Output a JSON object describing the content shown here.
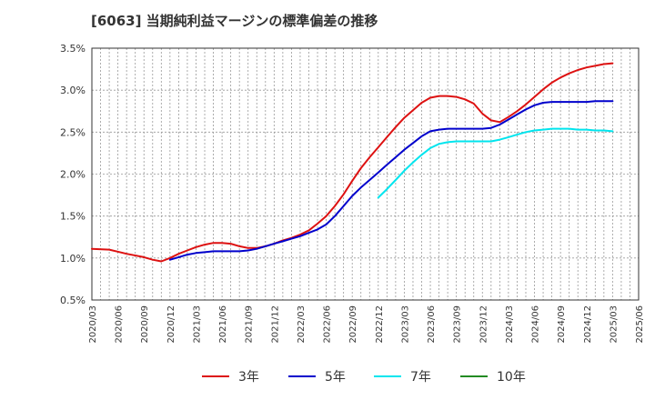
{
  "chart_data": {
    "type": "line",
    "title": "[6063]  当期純利益マージンの標準偏差の推移",
    "xlabel": "",
    "ylabel": "",
    "ylim": [
      0.5,
      3.5
    ],
    "yticks": [
      "0.5%",
      "1.0%",
      "1.5%",
      "2.0%",
      "2.5%",
      "3.0%",
      "3.5%"
    ],
    "yticks_values": [
      0.5,
      1.0,
      1.5,
      2.0,
      2.5,
      3.0,
      3.5
    ],
    "xticks": [
      "2020/03",
      "2020/06",
      "2020/09",
      "2020/12",
      "2021/03",
      "2021/06",
      "2021/09",
      "2021/12",
      "2022/03",
      "2022/06",
      "2022/09",
      "2022/12",
      "2023/03",
      "2023/06",
      "2023/09",
      "2023/12",
      "2024/03",
      "2024/06",
      "2024/09",
      "2024/12",
      "2025/03",
      "2025/06"
    ],
    "grid": true,
    "legend_position": "bottom",
    "series": [
      {
        "name": "3年",
        "color": "#dd1111",
        "x": [
          "2020/03",
          "2020/05",
          "2020/07",
          "2020/09",
          "2020/10",
          "2020/11",
          "2020/12",
          "2021/01",
          "2021/02",
          "2021/03",
          "2021/04",
          "2021/05",
          "2021/06",
          "2021/07",
          "2021/08",
          "2021/09",
          "2021/10",
          "2021/11",
          "2021/12",
          "2022/01",
          "2022/02",
          "2022/03",
          "2022/04",
          "2022/05",
          "2022/06",
          "2022/07",
          "2022/08",
          "2022/09",
          "2022/10",
          "2022/11",
          "2022/12",
          "2023/01",
          "2023/02",
          "2023/03",
          "2023/04",
          "2023/05",
          "2023/06",
          "2023/07",
          "2023/08",
          "2023/09",
          "2023/10",
          "2023/11",
          "2023/12",
          "2024/01",
          "2024/02",
          "2024/03",
          "2024/04",
          "2024/05",
          "2024/06",
          "2024/07",
          "2024/08",
          "2024/09",
          "2024/10",
          "2024/11",
          "2024/12",
          "2025/01",
          "2025/02",
          "2025/03"
        ],
        "values": [
          1.11,
          1.1,
          1.05,
          1.01,
          0.98,
          0.96,
          1.0,
          1.05,
          1.09,
          1.13,
          1.16,
          1.18,
          1.18,
          1.17,
          1.14,
          1.12,
          1.12,
          1.14,
          1.17,
          1.21,
          1.24,
          1.28,
          1.33,
          1.41,
          1.5,
          1.62,
          1.76,
          1.92,
          2.07,
          2.2,
          2.32,
          2.44,
          2.56,
          2.67,
          2.76,
          2.85,
          2.91,
          2.93,
          2.93,
          2.92,
          2.89,
          2.84,
          2.72,
          2.64,
          2.62,
          2.68,
          2.75,
          2.83,
          2.92,
          3.01,
          3.09,
          3.15,
          3.2,
          3.24,
          3.27,
          3.29,
          3.31,
          3.32
        ]
      },
      {
        "name": "5年",
        "color": "#0000cc",
        "x": [
          "2020/12",
          "2021/01",
          "2021/02",
          "2021/03",
          "2021/04",
          "2021/05",
          "2021/06",
          "2021/07",
          "2021/08",
          "2021/09",
          "2021/10",
          "2021/11",
          "2021/12",
          "2022/01",
          "2022/02",
          "2022/03",
          "2022/04",
          "2022/05",
          "2022/06",
          "2022/07",
          "2022/08",
          "2022/09",
          "2022/10",
          "2022/11",
          "2022/12",
          "2023/01",
          "2023/02",
          "2023/03",
          "2023/04",
          "2023/05",
          "2023/06",
          "2023/07",
          "2023/08",
          "2023/09",
          "2023/10",
          "2023/11",
          "2023/12",
          "2024/01",
          "2024/02",
          "2024/03",
          "2024/04",
          "2024/05",
          "2024/06",
          "2024/07",
          "2024/08",
          "2024/09",
          "2024/10",
          "2024/11",
          "2024/12",
          "2025/01",
          "2025/02",
          "2025/03"
        ],
        "values": [
          0.98,
          1.01,
          1.04,
          1.06,
          1.07,
          1.08,
          1.08,
          1.08,
          1.08,
          1.09,
          1.11,
          1.14,
          1.17,
          1.2,
          1.23,
          1.26,
          1.3,
          1.34,
          1.4,
          1.5,
          1.62,
          1.74,
          1.84,
          1.93,
          2.02,
          2.11,
          2.2,
          2.29,
          2.37,
          2.45,
          2.51,
          2.53,
          2.54,
          2.54,
          2.54,
          2.54,
          2.54,
          2.55,
          2.59,
          2.65,
          2.71,
          2.77,
          2.82,
          2.85,
          2.86,
          2.86,
          2.86,
          2.86,
          2.86,
          2.87,
          2.87,
          2.87
        ]
      },
      {
        "name": "7年",
        "color": "#00e5ee",
        "x": [
          "2022/12",
          "2023/01",
          "2023/02",
          "2023/03",
          "2023/04",
          "2023/05",
          "2023/06",
          "2023/07",
          "2023/08",
          "2023/09",
          "2023/10",
          "2023/11",
          "2023/12",
          "2024/01",
          "2024/02",
          "2024/03",
          "2024/04",
          "2024/05",
          "2024/06",
          "2024/07",
          "2024/08",
          "2024/09",
          "2024/10",
          "2024/11",
          "2024/12",
          "2025/01",
          "2025/02",
          "2025/03"
        ],
        "values": [
          1.72,
          1.82,
          1.93,
          2.04,
          2.14,
          2.23,
          2.31,
          2.36,
          2.38,
          2.39,
          2.39,
          2.39,
          2.39,
          2.39,
          2.41,
          2.44,
          2.47,
          2.5,
          2.52,
          2.53,
          2.54,
          2.54,
          2.54,
          2.53,
          2.53,
          2.52,
          2.52,
          2.51
        ]
      },
      {
        "name": "10年",
        "color": "#228b22",
        "x": [],
        "values": []
      }
    ]
  }
}
